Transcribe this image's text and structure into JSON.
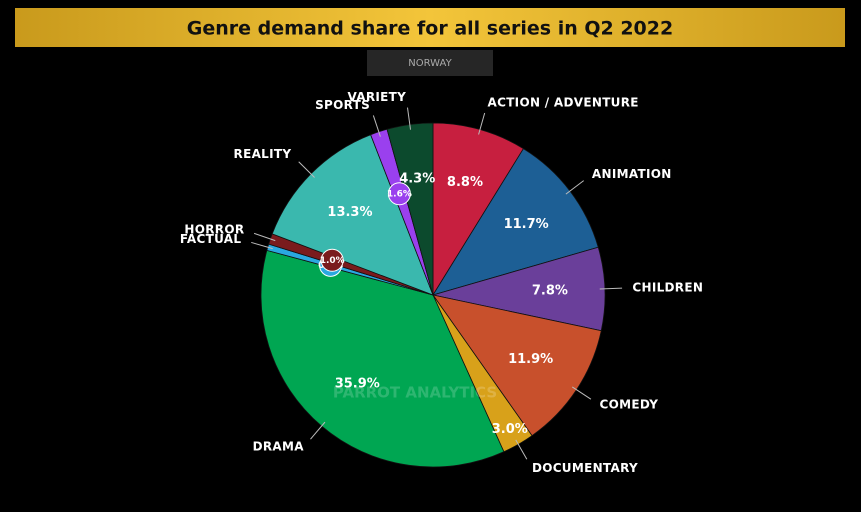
{
  "chart_data": {
    "type": "pie",
    "title": "Genre demand share for all series in Q2 2022",
    "subtitle": "NORWAY",
    "watermark": "PARROT ANALYTICS",
    "categories": [
      "ACTION / ADVENTURE",
      "ANIMATION",
      "CHILDREN",
      "COMEDY",
      "DOCUMENTARY",
      "DRAMA",
      "FACTUAL",
      "HORROR",
      "REALITY",
      "SPORTS",
      "VARIETY"
    ],
    "values": [
      8.8,
      11.7,
      7.8,
      11.9,
      3.0,
      35.9,
      0.6,
      1.0,
      13.3,
      1.6,
      4.3
    ],
    "value_labels": [
      "8.8%",
      "11.7%",
      "7.8%",
      "11.9%",
      "3.0%",
      "35.9%",
      "0.6%",
      "1.0%",
      "13.3%",
      "1.6%",
      "4.3%"
    ],
    "colors": [
      "#c71f3f",
      "#1d5f95",
      "#6a3f9a",
      "#c8502c",
      "#d8a11a",
      "#00a652",
      "#2aa8e0",
      "#7a1b1d",
      "#3ab8ae",
      "#9a40ee",
      "#0c4a2d"
    ]
  }
}
